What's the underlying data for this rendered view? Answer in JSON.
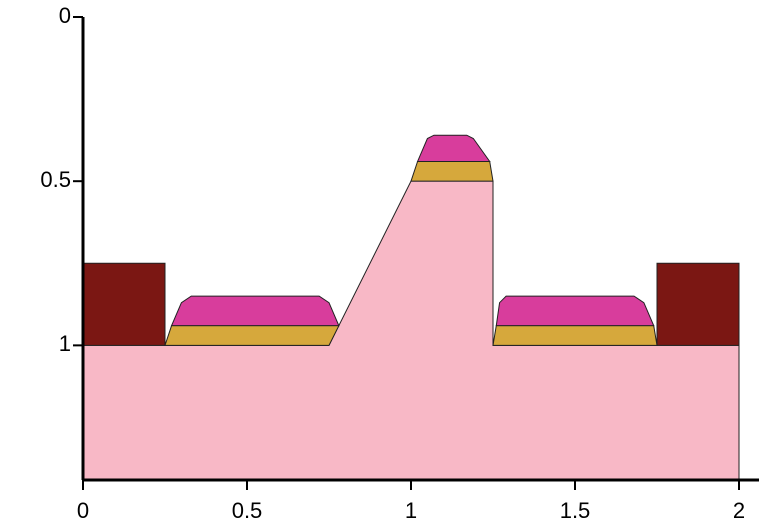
{
  "chart_data": {
    "type": "polygon",
    "xlim": [
      0,
      2
    ],
    "ylim": [
      0,
      1.41
    ],
    "y_inverted": true,
    "xticks": [
      0,
      0.5,
      1,
      1.5,
      2
    ],
    "yticks": [
      0,
      0.5,
      1
    ],
    "series": [
      {
        "color": "#f8b8c6",
        "x": [
          0,
          0.75,
          1,
          1.25,
          1.25,
          2,
          2,
          0
        ],
        "y": [
          1,
          1,
          0.5,
          0.5,
          1,
          1,
          1.41,
          1.41
        ]
      },
      {
        "color": "#7b1713",
        "x": [
          0,
          0.25,
          0.25,
          0
        ],
        "y": [
          0.75,
          0.75,
          1,
          1
        ]
      },
      {
        "color": "#7b1713",
        "x": [
          1.75,
          2,
          2,
          1.75
        ],
        "y": [
          0.75,
          0.75,
          1,
          1
        ]
      },
      {
        "color": "#d6a83c",
        "x": [
          0.25,
          0.75,
          0.78,
          0.27
        ],
        "y": [
          1,
          1,
          0.94,
          0.94
        ]
      },
      {
        "color": "#d83d9c",
        "x": [
          0.27,
          0.78,
          0.75,
          0.72,
          0.33,
          0.3
        ],
        "y": [
          0.94,
          0.94,
          0.87,
          0.85,
          0.85,
          0.87
        ]
      },
      {
        "color": "#d6a83c",
        "x": [
          1,
          1.25,
          1.24,
          1.02
        ],
        "y": [
          0.5,
          0.5,
          0.44,
          0.44
        ]
      },
      {
        "color": "#d83d9c",
        "x": [
          1.02,
          1.24,
          1.19,
          1.17,
          1.07,
          1.05
        ],
        "y": [
          0.44,
          0.44,
          0.37,
          0.36,
          0.36,
          0.37
        ]
      },
      {
        "color": "#d6a83c",
        "x": [
          1.25,
          1.75,
          1.74,
          1.26
        ],
        "y": [
          1,
          1,
          0.94,
          0.94
        ]
      },
      {
        "color": "#d83d9c",
        "x": [
          1.26,
          1.74,
          1.71,
          1.68,
          1.29,
          1.27
        ],
        "y": [
          0.94,
          0.94,
          0.87,
          0.85,
          0.85,
          0.87
        ]
      }
    ]
  }
}
